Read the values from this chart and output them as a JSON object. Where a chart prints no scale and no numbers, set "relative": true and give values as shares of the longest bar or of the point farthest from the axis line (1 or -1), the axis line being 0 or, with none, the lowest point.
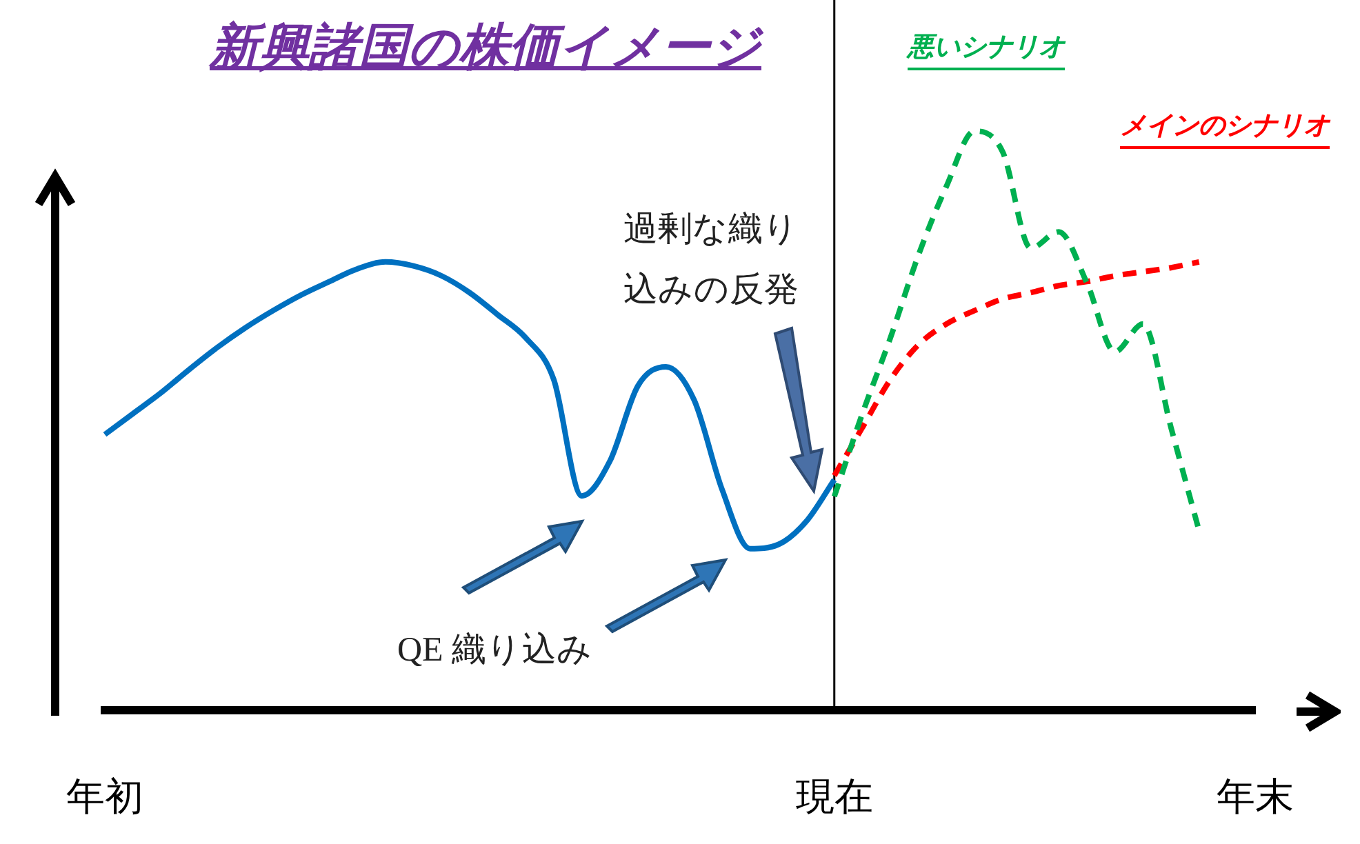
{
  "chart_data": {
    "type": "line",
    "title": "新興諸国の株価イメージ",
    "relative": true,
    "legend": false,
    "categories": [
      "年初",
      null,
      null,
      null,
      null,
      null,
      null,
      null,
      null,
      null,
      null,
      null,
      null,
      null,
      null,
      null,
      null,
      null,
      null,
      null,
      null,
      null,
      null,
      null,
      null,
      null,
      "現在",
      null,
      null,
      null,
      null,
      null,
      null,
      null,
      null,
      null,
      null,
      null,
      null,
      null,
      null,
      "年末"
    ],
    "series": [
      {
        "color": "#0070c0",
        "line_style": "solid",
        "values": [
          0.476,
          0.512,
          0.548,
          0.588,
          0.626,
          0.66,
          0.69,
          0.717,
          0.74,
          0.762,
          0.774,
          0.767,
          0.75,
          0.721,
          0.683,
          0.643,
          0.571,
          0.37,
          0.43,
          0.56,
          0.593,
          0.536,
          0.381,
          0.279,
          0.286,
          0.326,
          0.398,
          null,
          null,
          null,
          null,
          null,
          null,
          null,
          null,
          null,
          null,
          null,
          null,
          null,
          null,
          null
        ]
      },
      {
        "name": "悪いシナリオ",
        "color": "#00b050",
        "line_style": "dashed",
        "values": [
          null,
          null,
          null,
          null,
          null,
          null,
          null,
          null,
          null,
          null,
          null,
          null,
          null,
          null,
          null,
          null,
          null,
          null,
          null,
          null,
          null,
          null,
          null,
          null,
          null,
          null,
          0.369,
          0.512,
          0.643,
          0.786,
          0.905,
          1.0,
          0.964,
          0.798,
          0.826,
          0.738,
          0.619,
          0.667,
          0.488,
          0.31,
          null,
          null
        ]
      },
      {
        "name": "メインのシナリオ",
        "color": "#ff0000",
        "line_style": "dashed",
        "values": [
          null,
          null,
          null,
          null,
          null,
          null,
          null,
          null,
          null,
          null,
          null,
          null,
          null,
          null,
          null,
          null,
          null,
          null,
          null,
          null,
          null,
          null,
          null,
          null,
          null,
          null,
          0.405,
          0.488,
          0.571,
          0.631,
          0.667,
          0.69,
          0.71,
          0.721,
          0.733,
          0.74,
          0.75,
          0.757,
          0.764,
          0.774,
          null,
          null
        ]
      }
    ],
    "ref_lines": [
      {
        "axis": "x",
        "value": "現在",
        "color": "#000000"
      }
    ],
    "annotations": [
      "過剰な織り込みの反発",
      "QE 織り込み"
    ]
  }
}
